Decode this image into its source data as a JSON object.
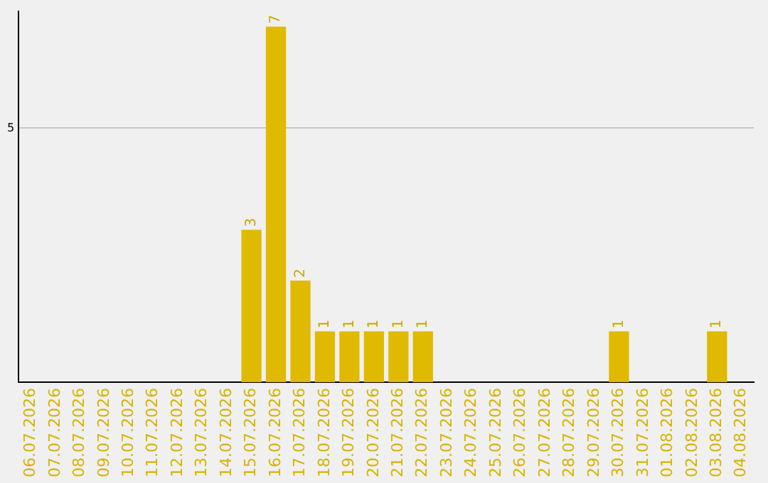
{
  "chart_data": {
    "type": "bar",
    "categories": [
      "06.07.2026",
      "07.07.2026",
      "08.07.2026",
      "09.07.2026",
      "10.07.2026",
      "11.07.2026",
      "12.07.2026",
      "13.07.2026",
      "14.07.2026",
      "15.07.2026",
      "16.07.2026",
      "17.07.2026",
      "18.07.2026",
      "19.07.2026",
      "20.07.2026",
      "21.07.2026",
      "22.07.2026",
      "23.07.2026",
      "24.07.2026",
      "25.07.2026",
      "26.07.2026",
      "27.07.2026",
      "28.07.2026",
      "29.07.2026",
      "30.07.2026",
      "31.07.2026",
      "01.08.2026",
      "02.08.2026",
      "03.08.2026",
      "04.08.2026"
    ],
    "values": [
      0,
      0,
      0,
      0,
      0,
      0,
      0,
      0,
      0,
      3,
      7,
      2,
      1,
      1,
      1,
      1,
      1,
      0,
      0,
      0,
      0,
      0,
      0,
      0,
      1,
      0,
      0,
      0,
      1,
      0
    ],
    "value_labels": [
      null,
      null,
      null,
      null,
      null,
      null,
      null,
      null,
      null,
      "3",
      "7",
      "2",
      "1",
      "1",
      "1",
      "1",
      "1",
      null,
      null,
      null,
      null,
      null,
      null,
      null,
      "1",
      null,
      null,
      null,
      "1",
      null
    ],
    "color": "#dfba00",
    "ylim": [
      0,
      7.3
    ],
    "yticks": [
      5
    ],
    "grid": "y",
    "legend": false
  }
}
